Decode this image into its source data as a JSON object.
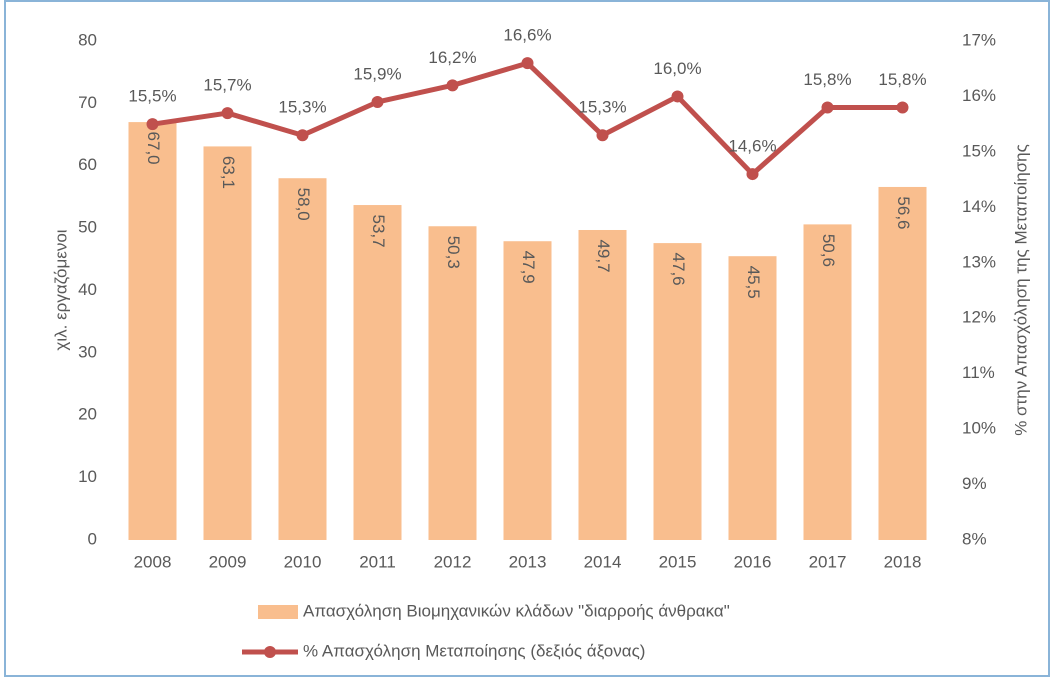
{
  "chart_data": {
    "type": "bar",
    "categories": [
      "2008",
      "2009",
      "2010",
      "2011",
      "2012",
      "2013",
      "2014",
      "2015",
      "2016",
      "2017",
      "2018"
    ],
    "series": [
      {
        "name": "Απασχόληση Βιομηχανικών  κλάδων \"διαρροής άνθρακα\"",
        "type": "bar",
        "color": "#f9be8e",
        "values": [
          67.0,
          63.1,
          58.0,
          53.7,
          50.3,
          47.9,
          49.7,
          47.6,
          45.5,
          50.6,
          56.6
        ],
        "value_labels": [
          "67,0",
          "63,1",
          "58,0",
          "53,7",
          "50,3",
          "47,9",
          "49,7",
          "47,6",
          "45,5",
          "50,6",
          "56,6"
        ]
      },
      {
        "name": "% Απασχόληση Μεταποίησης (δεξιός άξονας)",
        "type": "line",
        "axis": "y2",
        "color": "#c0504d",
        "values": [
          15.5,
          15.7,
          15.3,
          15.9,
          16.2,
          16.6,
          15.3,
          16.0,
          14.6,
          15.8,
          15.8
        ],
        "value_labels": [
          "15,5%",
          "15,7%",
          "15,3%",
          "15,9%",
          "16,2%",
          "16,6%",
          "15,3%",
          "16,0%",
          "14,6%",
          "15,8%",
          "15,8%"
        ]
      }
    ],
    "ylabel": "χιλ. εργαζόμενοι",
    "y2label": "% στην Απασχόληση της Μεταποίησης",
    "ylim": [
      0,
      80
    ],
    "yticks": [
      0,
      10,
      20,
      30,
      40,
      50,
      60,
      70,
      80
    ],
    "y2lim": [
      8,
      17
    ],
    "y2ticks": [
      {
        "value": 8,
        "label": "8%"
      },
      {
        "value": 9,
        "label": "9%"
      },
      {
        "value": 10,
        "label": "10%"
      },
      {
        "value": 11,
        "label": "11%"
      },
      {
        "value": 12,
        "label": "12%"
      },
      {
        "value": 13,
        "label": "13%"
      },
      {
        "value": 14,
        "label": "14%"
      },
      {
        "value": 15,
        "label": "15%"
      },
      {
        "value": 16,
        "label": "16%"
      },
      {
        "value": 17,
        "label": "17%"
      }
    ],
    "grid": false,
    "legend": "bottom"
  }
}
